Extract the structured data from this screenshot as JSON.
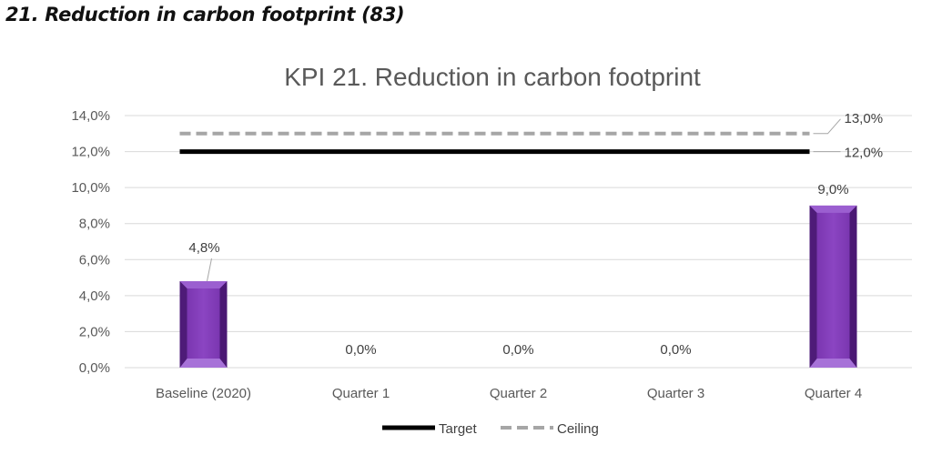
{
  "page": {
    "heading": "21. Reduction in carbon footprint (83)"
  },
  "chart_data": {
    "type": "bar",
    "title": "KPI 21. Reduction in carbon footprint",
    "categories": [
      "Baseline (2020)",
      "Quarter 1",
      "Quarter 2",
      "Quarter 3",
      "Quarter 4"
    ],
    "values": [
      4.8,
      0.0,
      0.0,
      0.0,
      9.0
    ],
    "value_labels": [
      "4,8%",
      "0,0%",
      "0,0%",
      "0,0%",
      "9,0%"
    ],
    "ylim": [
      0,
      14
    ],
    "yticks": [
      0,
      2,
      4,
      6,
      8,
      10,
      12,
      14
    ],
    "ytick_labels": [
      "0,0%",
      "2,0%",
      "4,0%",
      "6,0%",
      "8,0%",
      "10,0%",
      "12,0%",
      "14,0%"
    ],
    "grid": true,
    "legend_position": "bottom",
    "bar_color": "#7030a0",
    "lines": [
      {
        "name": "Target",
        "value": 12.0,
        "label": "12,0%",
        "color": "#000000",
        "style": "solid"
      },
      {
        "name": "Ceiling",
        "value": 13.0,
        "label": "13,0%",
        "color": "#a6a6a6",
        "style": "dashed"
      }
    ]
  }
}
